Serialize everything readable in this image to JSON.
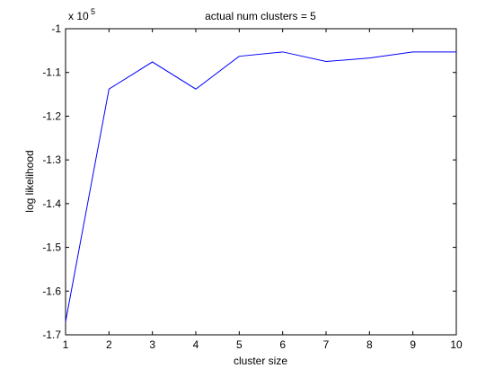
{
  "chart_data": {
    "type": "line",
    "title": "actual num clusters = 5",
    "xlabel": "cluster size",
    "ylabel": "log likelihood",
    "y_exponent_label": "x 10",
    "y_exponent_power": "5",
    "xlim": [
      1,
      10
    ],
    "ylim": [
      -1.7,
      -1.0
    ],
    "x_ticks": [
      "1",
      "2",
      "3",
      "4",
      "5",
      "6",
      "7",
      "8",
      "9",
      "10"
    ],
    "y_ticks": [
      "-1",
      "-1.1",
      "-1.2",
      "-1.3",
      "-1.4",
      "-1.5",
      "-1.6",
      "-1.7"
    ],
    "grid": false,
    "series": [
      {
        "x": [
          1,
          2,
          3,
          4,
          5,
          6,
          7,
          8,
          9,
          10
        ],
        "values": [
          -1.67,
          -1.138,
          -1.076,
          -1.138,
          -1.063,
          -1.053,
          -1.075,
          -1.067,
          -1.053,
          -1.053
        ],
        "color": "#0000ff"
      }
    ]
  }
}
